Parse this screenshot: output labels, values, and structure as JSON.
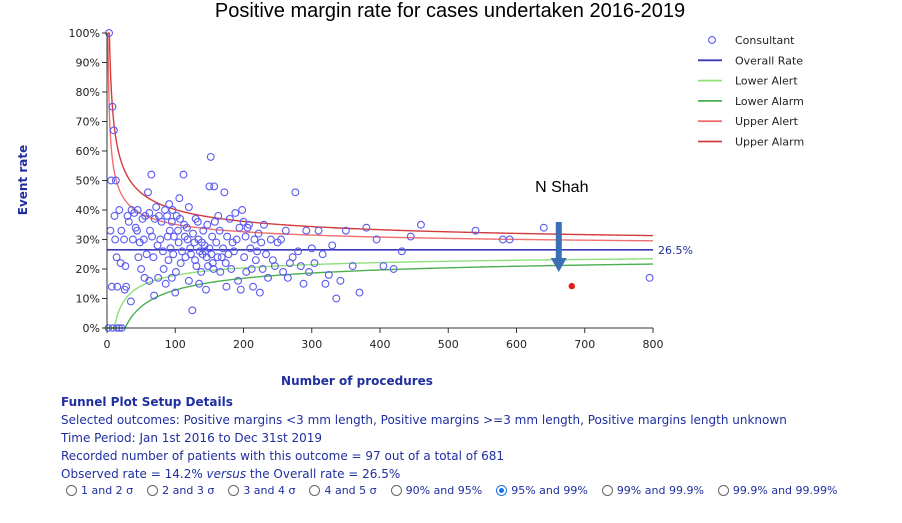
{
  "chart_data": {
    "type": "scatter",
    "title": "Positive margin rate for cases undertaken 2016-2019",
    "xlabel": "Number of procedures",
    "ylabel": "Event rate",
    "xlim": [
      0,
      800
    ],
    "ylim": [
      0,
      100
    ],
    "x_ticks": [
      "0",
      "100",
      "200",
      "300",
      "400",
      "500",
      "600",
      "700",
      "800"
    ],
    "y_ticks": [
      "0%",
      "10%",
      "20%",
      "30%",
      "40%",
      "50%",
      "60%",
      "70%",
      "80%",
      "90%",
      "100%"
    ],
    "overall_rate": 26.5,
    "overall_rate_label": "26.5%",
    "legend_position": "top-right",
    "legend": [
      {
        "label": "Consultant",
        "kind": "marker",
        "color": "#5b5bf0"
      },
      {
        "label": "Overall Rate",
        "kind": "line",
        "color": "#3a3ab8"
      },
      {
        "label": "Lower Alert",
        "kind": "line",
        "color": "#8ee07a"
      },
      {
        "label": "Lower Alarm",
        "kind": "line",
        "color": "#4caf50"
      },
      {
        "label": "Upper Alert",
        "kind": "line",
        "color": "#f07070"
      },
      {
        "label": "Upper Alarm",
        "kind": "line",
        "color": "#d23c3c"
      }
    ],
    "limit_z": {
      "alert": 1.96,
      "alarm": 3.09
    },
    "highlight": {
      "name": "N Shah",
      "x": 681,
      "y": 14.2,
      "color": "#e02020"
    },
    "consultants": [
      [
        3,
        100
      ],
      [
        5,
        33
      ],
      [
        6,
        50
      ],
      [
        7,
        14
      ],
      [
        8,
        75
      ],
      [
        10,
        67
      ],
      [
        11,
        38
      ],
      [
        12,
        30
      ],
      [
        13,
        50
      ],
      [
        14,
        24
      ],
      [
        15,
        14
      ],
      [
        18,
        40
      ],
      [
        20,
        22
      ],
      [
        21,
        33
      ],
      [
        25,
        30
      ],
      [
        26,
        13
      ],
      [
        27,
        21
      ],
      [
        28,
        14
      ],
      [
        30,
        38
      ],
      [
        32,
        36
      ],
      [
        35,
        9
      ],
      [
        36,
        40
      ],
      [
        38,
        30
      ],
      [
        40,
        39
      ],
      [
        42,
        34
      ],
      [
        44,
        33
      ],
      [
        45,
        40
      ],
      [
        46,
        24
      ],
      [
        48,
        29
      ],
      [
        50,
        20
      ],
      [
        52,
        37
      ],
      [
        54,
        30
      ],
      [
        55,
        17
      ],
      [
        56,
        38
      ],
      [
        58,
        25
      ],
      [
        60,
        46
      ],
      [
        62,
        39
      ],
      [
        62,
        16
      ],
      [
        63,
        33
      ],
      [
        65,
        52
      ],
      [
        66,
        31
      ],
      [
        68,
        24
      ],
      [
        69,
        11
      ],
      [
        70,
        37
      ],
      [
        72,
        41
      ],
      [
        74,
        28
      ],
      [
        75,
        17
      ],
      [
        76,
        38
      ],
      [
        78,
        30
      ],
      [
        80,
        36
      ],
      [
        82,
        26
      ],
      [
        83,
        20
      ],
      [
        85,
        40
      ],
      [
        86,
        15
      ],
      [
        88,
        38
      ],
      [
        89,
        31
      ],
      [
        90,
        23
      ],
      [
        91,
        42
      ],
      [
        92,
        33
      ],
      [
        93,
        27
      ],
      [
        95,
        17
      ],
      [
        95,
        36
      ],
      [
        96,
        40
      ],
      [
        97,
        25
      ],
      [
        98,
        31
      ],
      [
        100,
        12
      ],
      [
        101,
        19
      ],
      [
        102,
        38
      ],
      [
        104,
        33
      ],
      [
        105,
        29
      ],
      [
        106,
        44
      ],
      [
        107,
        37
      ],
      [
        108,
        22
      ],
      [
        110,
        26
      ],
      [
        112,
        52
      ],
      [
        113,
        35
      ],
      [
        114,
        31
      ],
      [
        115,
        24
      ],
      [
        117,
        34
      ],
      [
        118,
        30
      ],
      [
        120,
        16
      ],
      [
        120,
        41
      ],
      [
        122,
        27
      ],
      [
        123,
        25
      ],
      [
        125,
        6
      ],
      [
        126,
        32
      ],
      [
        128,
        29
      ],
      [
        129,
        23
      ],
      [
        130,
        37
      ],
      [
        131,
        21
      ],
      [
        133,
        36
      ],
      [
        134,
        30
      ],
      [
        135,
        15
      ],
      [
        136,
        26
      ],
      [
        138,
        19
      ],
      [
        139,
        29
      ],
      [
        140,
        25
      ],
      [
        141,
        33
      ],
      [
        143,
        28
      ],
      [
        144,
        26
      ],
      [
        145,
        13
      ],
      [
        146,
        24
      ],
      [
        147,
        35
      ],
      [
        148,
        21
      ],
      [
        150,
        48
      ],
      [
        150,
        27
      ],
      [
        152,
        58
      ],
      [
        153,
        25
      ],
      [
        154,
        31
      ],
      [
        155,
        22
      ],
      [
        156,
        20
      ],
      [
        157,
        48
      ],
      [
        158,
        36
      ],
      [
        160,
        29
      ],
      [
        162,
        24
      ],
      [
        163,
        38
      ],
      [
        165,
        33
      ],
      [
        166,
        19
      ],
      [
        168,
        24
      ],
      [
        170,
        27
      ],
      [
        172,
        46
      ],
      [
        174,
        22
      ],
      [
        175,
        14
      ],
      [
        176,
        31
      ],
      [
        178,
        25
      ],
      [
        180,
        37
      ],
      [
        182,
        20
      ],
      [
        184,
        29
      ],
      [
        186,
        26
      ],
      [
        188,
        39
      ],
      [
        190,
        30
      ],
      [
        192,
        16
      ],
      [
        194,
        34
      ],
      [
        196,
        13
      ],
      [
        198,
        40
      ],
      [
        200,
        36
      ],
      [
        201,
        24
      ],
      [
        203,
        31
      ],
      [
        204,
        19
      ],
      [
        206,
        34
      ],
      [
        208,
        35
      ],
      [
        210,
        27
      ],
      [
        212,
        20
      ],
      [
        214,
        14
      ],
      [
        216,
        30
      ],
      [
        218,
        23
      ],
      [
        220,
        26
      ],
      [
        222,
        32
      ],
      [
        224,
        12
      ],
      [
        226,
        29
      ],
      [
        228,
        20
      ],
      [
        230,
        35
      ],
      [
        233,
        25
      ],
      [
        236,
        17
      ],
      [
        240,
        30
      ],
      [
        243,
        23
      ],
      [
        246,
        21
      ],
      [
        250,
        29
      ],
      [
        255,
        30
      ],
      [
        258,
        19
      ],
      [
        262,
        33
      ],
      [
        265,
        17
      ],
      [
        268,
        22
      ],
      [
        272,
        24
      ],
      [
        276,
        46
      ],
      [
        280,
        26
      ],
      [
        284,
        21
      ],
      [
        288,
        15
      ],
      [
        292,
        33
      ],
      [
        296,
        19
      ],
      [
        300,
        27
      ],
      [
        304,
        22
      ],
      [
        310,
        33
      ],
      [
        316,
        25
      ],
      [
        320,
        15
      ],
      [
        325,
        18
      ],
      [
        330,
        28
      ],
      [
        336,
        10
      ],
      [
        342,
        16
      ],
      [
        350,
        33
      ],
      [
        360,
        21
      ],
      [
        370,
        12
      ],
      [
        380,
        34
      ],
      [
        395,
        30
      ],
      [
        405,
        21
      ],
      [
        420,
        20
      ],
      [
        432,
        26
      ],
      [
        445,
        31
      ],
      [
        460,
        35
      ],
      [
        540,
        33
      ],
      [
        580,
        30
      ],
      [
        590,
        30
      ],
      [
        640,
        34
      ],
      [
        795,
        17
      ]
    ]
  },
  "details": {
    "heading": "Funnel Plot Setup Details",
    "selected_outcomes": "Selected outcomes: Positive margins <3 mm length, Positive margins >=3 mm length, Positive margins length unknown",
    "time_period": "Time Period: Jan 1st 2016 to Dec 31st 2019",
    "recorded": "Recorded number of patients with this outcome = 97 out of a total of 681",
    "observed_a": "Observed rate = 14.2% ",
    "observed_versus": "versus",
    "observed_b": " the Overall rate = 26.5%"
  },
  "options": [
    {
      "label": "1 and 2 σ",
      "selected": false
    },
    {
      "label": "2 and 3 σ",
      "selected": false
    },
    {
      "label": "3 and 4 σ",
      "selected": false
    },
    {
      "label": "4 and 5 σ",
      "selected": false
    },
    {
      "label": "90% and 95%",
      "selected": false
    },
    {
      "label": "95% and 99%",
      "selected": true
    },
    {
      "label": "99% and 99.9%",
      "selected": false
    },
    {
      "label": "99.9% and 99.99%",
      "selected": false
    }
  ]
}
